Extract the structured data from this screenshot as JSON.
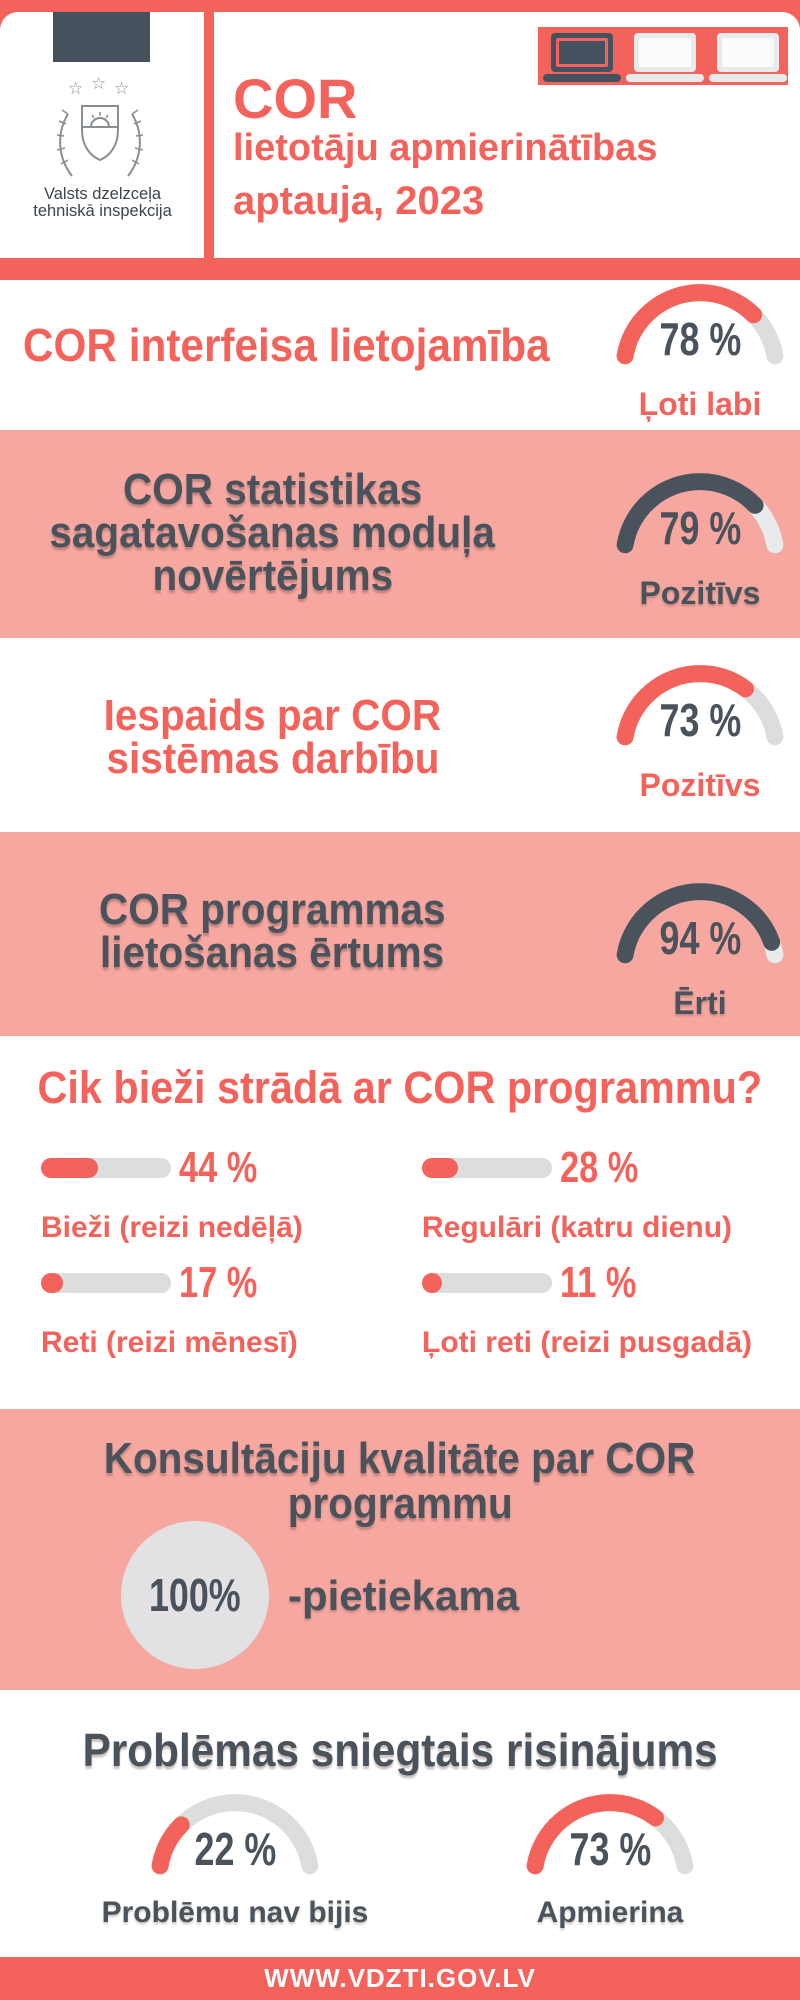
{
  "colors": {
    "coral": "#f4635b",
    "pink": "#f6a79f",
    "dark": "#4a525b",
    "flag_rect": "#45525e",
    "track_gray": "#dcdddf",
    "circle_gray": "#e2e2e4"
  },
  "header": {
    "org_line1": "Valsts dzelzceļa",
    "org_line2": "tehniskā inspekcija",
    "title_line1": "COR",
    "title_line2": "lietotāju apmierinātības",
    "title_line3": "aptauja, 2023"
  },
  "chart_data": {
    "type": "infographic-gauges",
    "gauges": [
      {
        "question": "COR interfeisa lietojamība",
        "question_lines": [
          "COR interfeisa lietojamība"
        ],
        "value": 78,
        "unit": "%",
        "label": "Ļoti labi",
        "color": "coral",
        "background": "white"
      },
      {
        "question": "COR statistikas sagatavošanas moduļa novērtējums",
        "question_lines": [
          "COR statistikas",
          "sagatavošanas moduļa",
          "novērtējums"
        ],
        "value": 79,
        "unit": "%",
        "label": "Pozitīvs",
        "color": "dark",
        "background": "pink"
      },
      {
        "question": "Iespaids par COR sistēmas darbību",
        "question_lines": [
          "Iespaids par COR",
          "sistēmas darbību"
        ],
        "value": 73,
        "unit": "%",
        "label": "Pozitīvs",
        "color": "coral",
        "background": "white"
      },
      {
        "question": "COR programmas lietošanas ērtums",
        "question_lines": [
          "COR programmas",
          "lietošanas ērtums"
        ],
        "value": 94,
        "unit": "%",
        "label": "Ērti",
        "color": "dark",
        "background": "pink"
      }
    ],
    "frequency": {
      "title": "Cik bieži strādā ar COR programmu?",
      "max": 100,
      "items": [
        {
          "value": 44,
          "label": "Bieži (reizi nedēļā)"
        },
        {
          "value": 28,
          "label": "Regulāri (katru dienu)"
        },
        {
          "value": 17,
          "label": "Reti (reizi mēnesī)"
        },
        {
          "value": 11,
          "label": "Ļoti reti (reizi pusgadā)"
        }
      ]
    },
    "consultation": {
      "title_line1": "Konsultāciju kvalitāte par COR",
      "title_line2": "programmu",
      "value": 100,
      "unit": "%",
      "label": "-pietiekama"
    },
    "problems": {
      "title": "Problēmas sniegtais risinājums",
      "items": [
        {
          "value": 22,
          "label": "Problēmu nav bijis"
        },
        {
          "value": 73,
          "label": "Apmierina"
        }
      ]
    }
  },
  "footer": {
    "url": "WWW.VDZTI.GOV.LV"
  }
}
